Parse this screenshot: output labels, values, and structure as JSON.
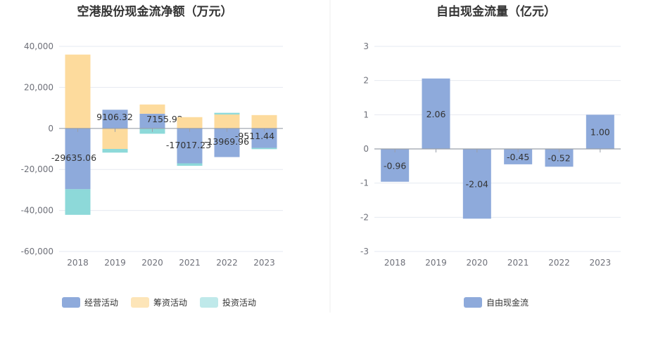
{
  "charts": {
    "left": {
      "title": "空港股份现金流净额（万元）",
      "y_ticks": [
        "40,000",
        "20,000",
        "0",
        "-20,000",
        "-40,000",
        "-60,000"
      ],
      "legend": [
        "经营活动",
        "筹资活动",
        "投资活动"
      ],
      "data_labels": [
        "-29635.06",
        "9106.32",
        "7155.92",
        "-17017.23",
        "-13969.96",
        "-9511.44"
      ]
    },
    "right": {
      "title": "自由现金流量（亿元）",
      "y_ticks": [
        "3",
        "2",
        "1",
        "0",
        "-1",
        "-2",
        "-3"
      ],
      "legend": [
        "自由现金流"
      ],
      "data_labels": [
        "-0.96",
        "2.06",
        "-2.04",
        "-0.45",
        "-0.52",
        "1.00"
      ]
    }
  },
  "chart_data": [
    {
      "type": "bar",
      "stacked": true,
      "title": "空港股份现金流净额（万元）",
      "categories": [
        "2018",
        "2019",
        "2020",
        "2021",
        "2022",
        "2023"
      ],
      "ylim": [
        -60000,
        40000
      ],
      "series": [
        {
          "name": "经营活动",
          "color": "#8eaadb",
          "values": [
            -29635.06,
            9106.32,
            7155.92,
            -17017.23,
            -13969.96,
            -9511.44
          ]
        },
        {
          "name": "筹资活动",
          "color": "#fddb9d",
          "values": [
            36000,
            -10000,
            4500,
            5500,
            6800,
            6500
          ]
        },
        {
          "name": "投资活动",
          "color": "#8dd9d9",
          "values": [
            -12500,
            -1800,
            -2600,
            -1200,
            800,
            -600
          ]
        }
      ],
      "legend_position": "bottom"
    },
    {
      "type": "bar",
      "title": "自由现金流量（亿元）",
      "categories": [
        "2018",
        "2019",
        "2020",
        "2021",
        "2022",
        "2023"
      ],
      "ylim": [
        -3,
        3
      ],
      "series": [
        {
          "name": "自由现金流",
          "color": "#8eaadb",
          "values": [
            -0.96,
            2.06,
            -2.04,
            -0.45,
            -0.52,
            1.0
          ]
        }
      ],
      "legend_position": "bottom"
    }
  ]
}
